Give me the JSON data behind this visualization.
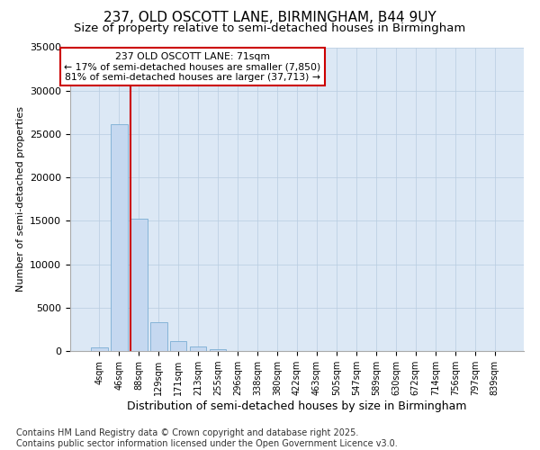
{
  "title_line1": "237, OLD OSCOTT LANE, BIRMINGHAM, B44 9UY",
  "title_line2": "Size of property relative to semi-detached houses in Birmingham",
  "xlabel": "Distribution of semi-detached houses by size in Birmingham",
  "ylabel": "Number of semi-detached properties",
  "bin_labels": [
    "4sqm",
    "46sqm",
    "88sqm",
    "129sqm",
    "171sqm",
    "213sqm",
    "255sqm",
    "296sqm",
    "338sqm",
    "380sqm",
    "422sqm",
    "463sqm",
    "505sqm",
    "547sqm",
    "589sqm",
    "630sqm",
    "672sqm",
    "714sqm",
    "756sqm",
    "797sqm",
    "839sqm"
  ],
  "bin_values": [
    400,
    26100,
    15200,
    3300,
    1100,
    500,
    200,
    50,
    10,
    5,
    3,
    2,
    1,
    1,
    0,
    0,
    0,
    0,
    0,
    0,
    0
  ],
  "bar_color": "#c5d8f0",
  "bar_edge_color": "#7badd4",
  "property_line_x": 1.58,
  "property_sqm": 71,
  "pct_smaller": 17,
  "pct_larger": 81,
  "count_smaller": "7,850",
  "count_larger": "37,713",
  "annotation_text_line1": "237 OLD OSCOTT LANE: 71sqm",
  "annotation_text_line2": "← 17% of semi-detached houses are smaller (7,850)",
  "annotation_text_line3": "81% of semi-detached houses are larger (37,713) →",
  "vline_color": "#cc0000",
  "ylim": [
    0,
    35000
  ],
  "yticks": [
    0,
    5000,
    10000,
    15000,
    20000,
    25000,
    30000,
    35000
  ],
  "bg_color": "#dce8f5",
  "footnote": "Contains HM Land Registry data © Crown copyright and database right 2025.\nContains public sector information licensed under the Open Government Licence v3.0.",
  "title_fontsize": 11,
  "subtitle_fontsize": 9.5,
  "annotation_box_color": "#ffffff",
  "annotation_box_edge": "#cc0000",
  "footnote_fontsize": 7
}
